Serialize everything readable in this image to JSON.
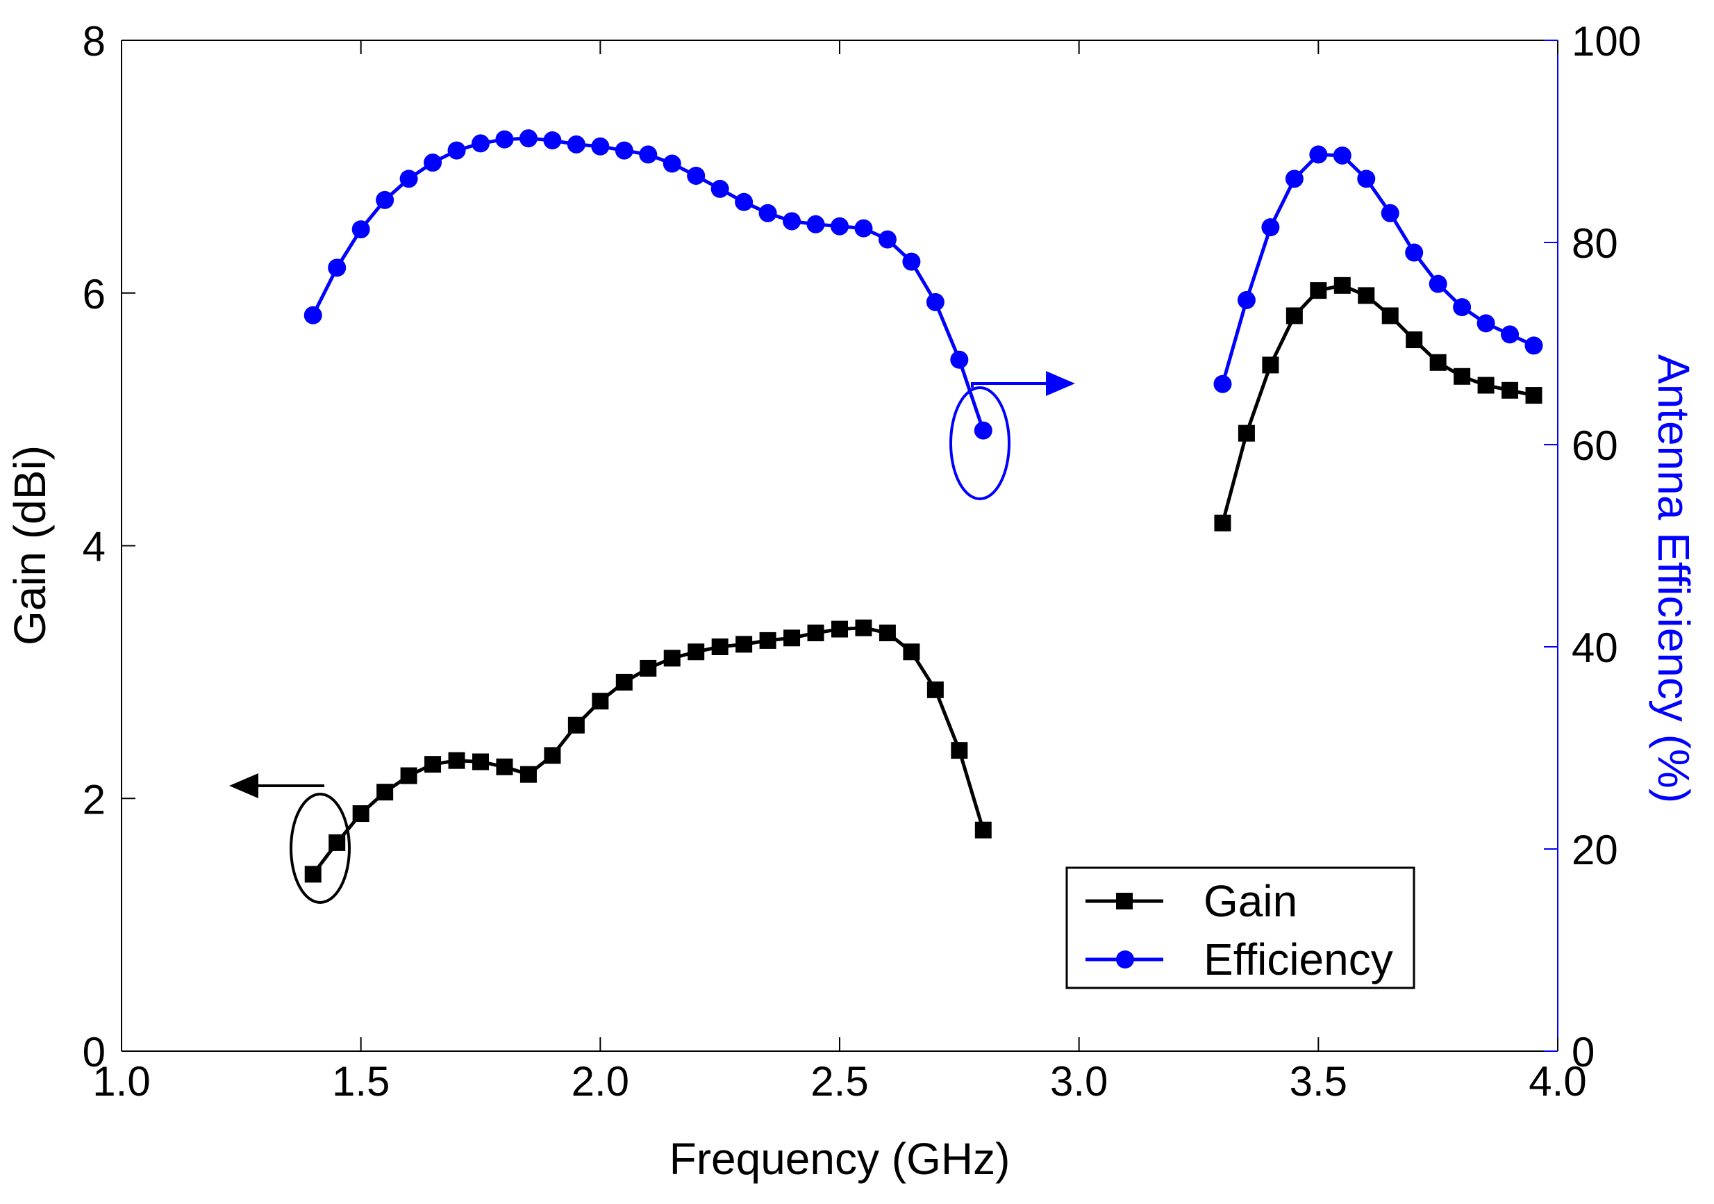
{
  "chart_data": {
    "type": "line",
    "xlabel": "Frequency (GHz)",
    "ylabel_left": "Gain (dBi)",
    "ylabel_right": "Antenna Efficiency (%)",
    "xlim": [
      1.0,
      4.0
    ],
    "ylim_left": [
      0,
      8
    ],
    "ylim_right": [
      0,
      100
    ],
    "x_ticks": [
      "1.0",
      "1.5",
      "2.0",
      "2.5",
      "3.0",
      "3.5",
      "4.0"
    ],
    "y_left_ticks": [
      "0",
      "2",
      "4",
      "6",
      "8"
    ],
    "y_right_ticks": [
      "0",
      "20",
      "40",
      "60",
      "80",
      "100"
    ],
    "grid": false,
    "legend_position": "bottom-right",
    "colors": {
      "gain": "#000000",
      "efficiency": "#0000ff"
    },
    "series": [
      {
        "name": "Gain",
        "axis": "left",
        "marker": "square",
        "segments": [
          {
            "x": [
              1.4,
              1.45,
              1.5,
              1.55,
              1.6,
              1.65,
              1.7,
              1.75,
              1.8,
              1.85,
              1.9,
              1.95,
              2.0,
              2.05,
              2.1,
              2.15,
              2.2,
              2.25,
              2.3,
              2.35,
              2.4,
              2.45,
              2.5,
              2.55,
              2.6,
              2.65,
              2.7,
              2.75,
              2.8
            ],
            "y": [
              1.4,
              1.65,
              1.88,
              2.05,
              2.18,
              2.27,
              2.3,
              2.29,
              2.25,
              2.19,
              2.34,
              2.58,
              2.77,
              2.92,
              3.03,
              3.11,
              3.16,
              3.2,
              3.22,
              3.25,
              3.27,
              3.31,
              3.34,
              3.35,
              3.31,
              3.16,
              2.86,
              2.38,
              1.75
            ]
          },
          {
            "x": [
              3.3,
              3.35,
              3.4,
              3.45,
              3.5,
              3.55,
              3.6,
              3.65,
              3.7,
              3.75,
              3.8,
              3.85,
              3.9,
              3.95
            ],
            "y": [
              4.18,
              4.89,
              5.43,
              5.82,
              6.02,
              6.06,
              5.98,
              5.82,
              5.63,
              5.45,
              5.34,
              5.27,
              5.23,
              5.19
            ]
          }
        ]
      },
      {
        "name": "Efficiency",
        "axis": "right",
        "marker": "circle",
        "segments": [
          {
            "x": [
              1.4,
              1.45,
              1.5,
              1.55,
              1.6,
              1.65,
              1.7,
              1.75,
              1.8,
              1.85,
              1.9,
              1.95,
              2.0,
              2.05,
              2.1,
              2.15,
              2.2,
              2.25,
              2.3,
              2.35,
              2.4,
              2.45,
              2.5,
              2.55,
              2.6,
              2.65,
              2.7,
              2.75,
              2.8
            ],
            "y": [
              72.8,
              77.5,
              81.3,
              84.2,
              86.3,
              87.9,
              89.1,
              89.8,
              90.2,
              90.3,
              90.1,
              89.7,
              89.5,
              89.1,
              88.7,
              87.8,
              86.6,
              85.3,
              84.0,
              82.9,
              82.1,
              81.8,
              81.6,
              81.4,
              80.3,
              78.1,
              74.1,
              68.4,
              61.4
            ]
          },
          {
            "x": [
              3.3,
              3.35,
              3.4,
              3.45,
              3.5,
              3.55,
              3.6,
              3.65,
              3.7,
              3.75,
              3.8,
              3.85,
              3.9,
              3.95
            ],
            "y": [
              66.0,
              74.3,
              81.5,
              86.3,
              88.7,
              88.6,
              86.3,
              82.9,
              79.0,
              75.9,
              73.6,
              72.0,
              70.9,
              69.8
            ]
          }
        ]
      }
    ],
    "legend": [
      {
        "label": "Gain"
      },
      {
        "label": "Efficiency"
      }
    ]
  }
}
